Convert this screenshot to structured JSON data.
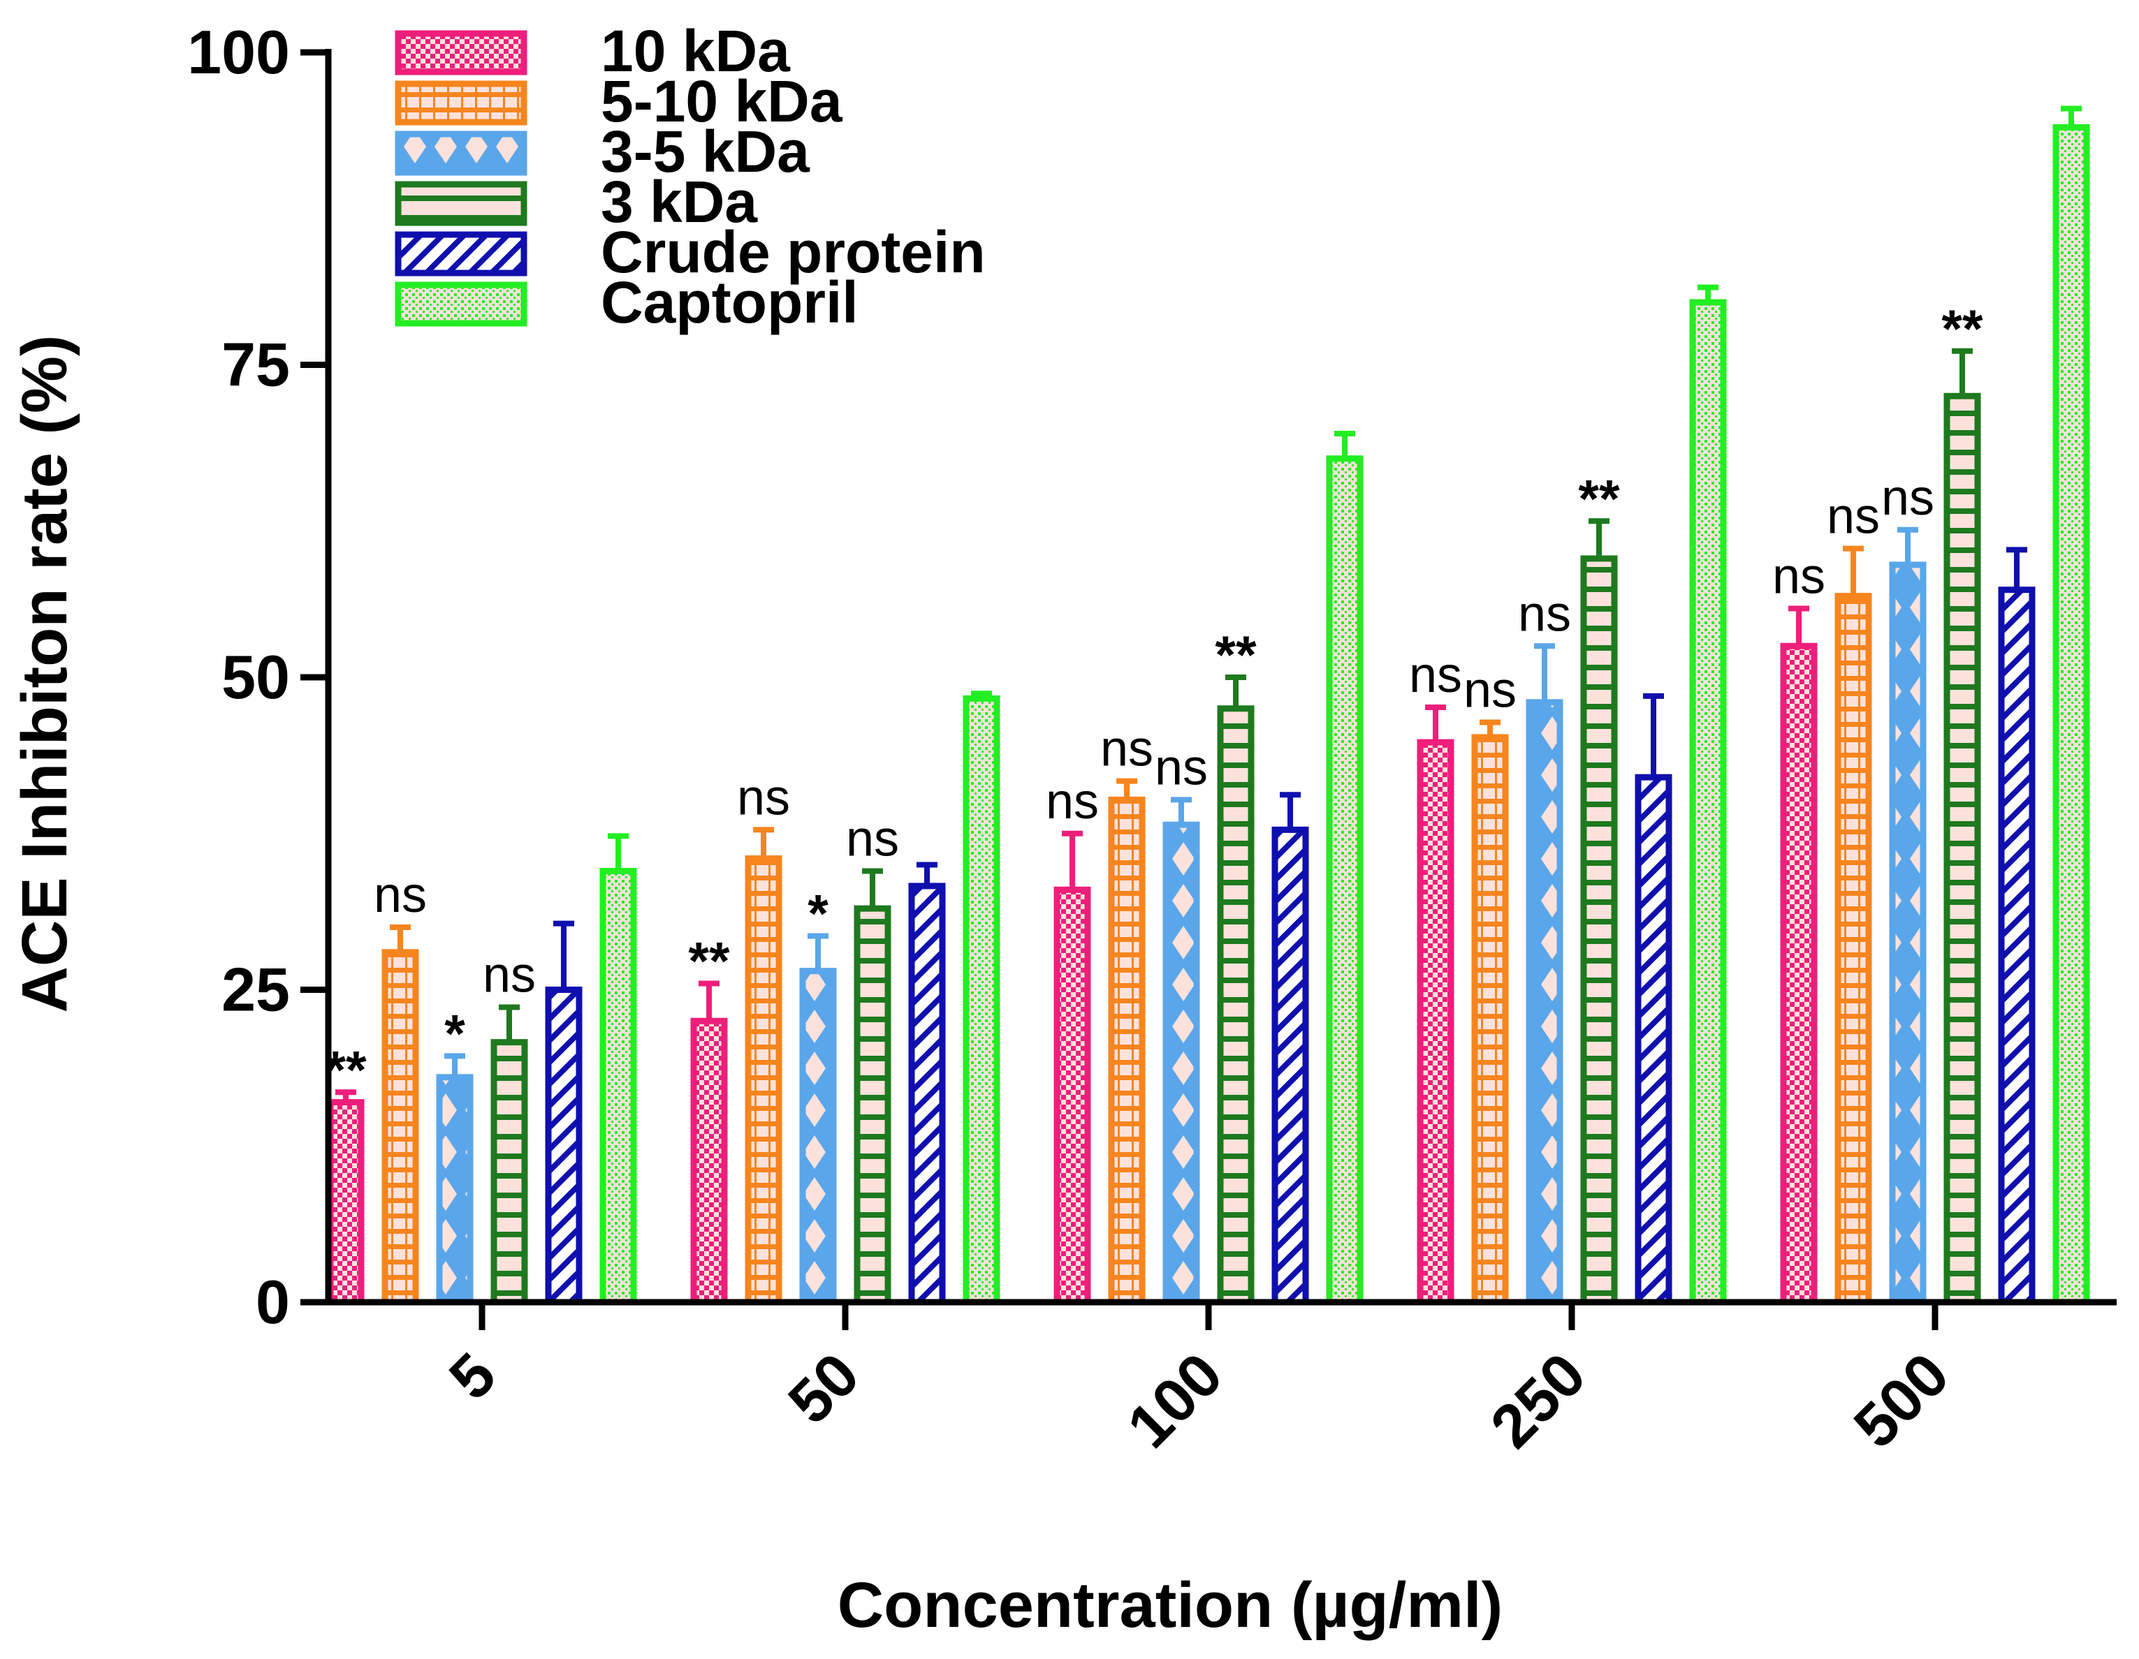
{
  "chart_data": {
    "type": "bar",
    "title": "",
    "xlabel": "Concentration (µg/ml)",
    "ylabel": "ACE Inhibiton rate (%)",
    "ylim": [
      0,
      100
    ],
    "yticks": [
      "0",
      "25",
      "50",
      "75",
      "100"
    ],
    "categories": [
      "5",
      "50",
      "100",
      "250",
      "500"
    ],
    "legend_position": "top-left",
    "series": [
      {
        "name": "10 kDa",
        "color": "#ee1e7b",
        "pattern": "checker",
        "values": [
          16,
          22.5,
          33,
          44.8,
          52.5
        ],
        "errors": [
          0.8,
          3,
          4.5,
          2.8,
          3
        ],
        "annotations": [
          "**",
          "**",
          "ns",
          "ns",
          "ns"
        ]
      },
      {
        "name": "5-10 kDa",
        "color": "#f7851e",
        "pattern": "hbricks",
        "values": [
          28,
          35.5,
          40.2,
          45.2,
          56.5
        ],
        "errors": [
          2,
          2.3,
          1.5,
          1.2,
          3.8
        ],
        "annotations": [
          "ns",
          "ns",
          "ns",
          "ns",
          "ns"
        ]
      },
      {
        "name": "3-5 kDa",
        "color": "#5aa6ea",
        "pattern": "diamond",
        "values": [
          18,
          26.5,
          38.2,
          48,
          59
        ],
        "errors": [
          1.7,
          2.8,
          2,
          4.5,
          2.8
        ],
        "annotations": [
          "*",
          "*",
          "ns",
          "ns",
          "ns"
        ]
      },
      {
        "name": "3 kDa",
        "color": "#1e7a1e",
        "pattern": "hlines",
        "values": [
          20.8,
          31.5,
          47.5,
          59.5,
          72.5
        ],
        "errors": [
          2.8,
          3,
          2.5,
          3,
          3.6
        ],
        "annotations": [
          "ns",
          "ns",
          "**",
          "**",
          "**"
        ]
      },
      {
        "name": "Crude protein",
        "color": "#0f0fae",
        "pattern": "diag",
        "values": [
          25,
          33.3,
          37.8,
          42,
          57
        ],
        "errors": [
          5.3,
          1.7,
          2.8,
          6.5,
          3.2
        ],
        "annotations": [
          "",
          "",
          "",
          "",
          ""
        ]
      },
      {
        "name": "Captopril",
        "color": "#22ee22",
        "pattern": "dots",
        "values": [
          34.5,
          48.3,
          67.5,
          80,
          94
        ],
        "errors": [
          2.8,
          0.4,
          2,
          1.2,
          1.5
        ],
        "annotations": [
          "",
          "",
          "",
          "",
          ""
        ]
      }
    ]
  }
}
